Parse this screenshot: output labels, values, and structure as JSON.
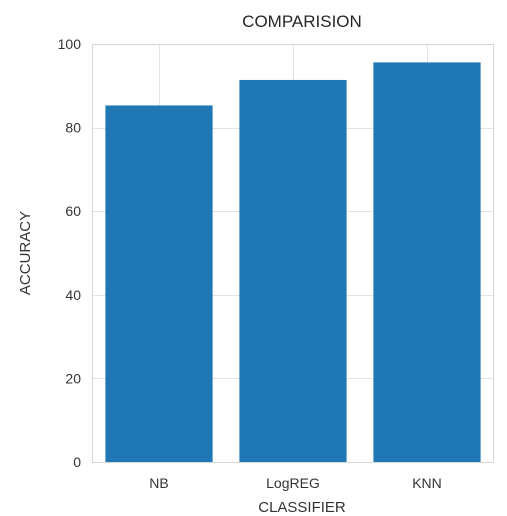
{
  "chart_data": {
    "type": "bar",
    "title": "COMPARISION",
    "xlabel": "CLASSIFIER",
    "ylabel": "ACCURACY",
    "categories": [
      "NB",
      "LogREG",
      "KNN"
    ],
    "values": [
      85.3,
      91.4,
      95.6
    ],
    "ylim": [
      0,
      100
    ],
    "yticks": [
      "0",
      "20",
      "40",
      "60",
      "80",
      "100"
    ],
    "grid": true,
    "colors": {
      "bar": "#1f77b4"
    }
  }
}
